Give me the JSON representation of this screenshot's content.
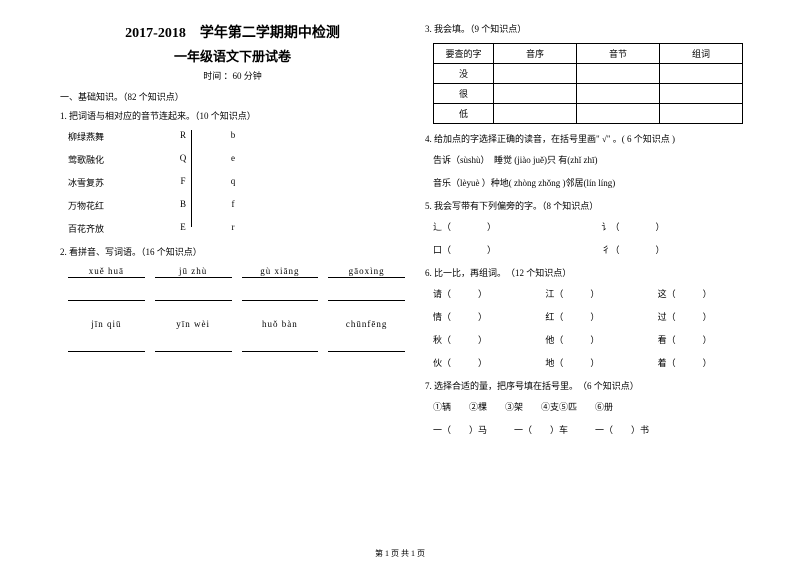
{
  "header": {
    "title1": "2017-2018　学年第二学期期中检测",
    "title2": "一年级语文下册试卷",
    "time": "时间 ：60 分钟"
  },
  "section1": "一、基础知识。（82 个知识点）",
  "q1": {
    "title": "1. 把词语与相对应的音节连起来。（10 个知识点）",
    "rows": [
      {
        "left": "柳绿燕舞",
        "mid": "R",
        "right": "b"
      },
      {
        "left": "莺歌融化",
        "mid": "Q",
        "right": "e"
      },
      {
        "left": "冰雪复苏",
        "mid": "F",
        "right": "q"
      },
      {
        "left": "万物花红",
        "mid": "B",
        "right": "f"
      },
      {
        "left": "百花齐放",
        "mid": "E",
        "right": "r"
      }
    ]
  },
  "q2": {
    "title": "2. 看拼音、写词语。（16 个知识点）",
    "row1": [
      "xuě huā",
      "jū zhù",
      "gù xiāng",
      "gāoxìng"
    ],
    "row2": [
      "jīn qiū",
      "yīn wèi",
      "huǒ bàn",
      "chūnfēng"
    ]
  },
  "q3": {
    "title": "3. 我会填。（9 个知识点）",
    "headers": [
      "要查的字",
      "音序",
      "音节",
      "组词"
    ],
    "rows": [
      "没",
      "很",
      "低"
    ]
  },
  "q4": {
    "title": "4. 给加点的字选择正确的读音，在括号里画\" √\" 。( 6 个知识点 )",
    "line1": "告诉（sùshù）　睡觉 (jiào  juě)只 有(zhǐ zhī)",
    "line2": "音乐（lèyuè ）种地( zhòng  zhǒng )邻居(lín  líng)"
  },
  "q5": {
    "title": "5. 我会写带有下列偏旁的字。（8 个知识点）",
    "row1a": "辶（　　　　）",
    "row1b": "讠（　　　　）",
    "row2a": "口（　　　　）",
    "row2b": "彳（　　　　）"
  },
  "q6": {
    "title": "6. 比一比，再组词。　（12 个知识点）",
    "rows": [
      [
        "请（　　　）",
        "江（　　　）",
        "这（　　　）"
      ],
      [
        "情（　　　）",
        "红（　　　）",
        "过（　　　）"
      ],
      [
        "秋（　　　）",
        "他（　　　）",
        "看（　　　）"
      ],
      [
        "伙（　　　）",
        "地（　　　）",
        "着（　　　）"
      ]
    ]
  },
  "q7": {
    "title": "7. 选择合适的量，把序号填在括号里。　（6 个知识点）",
    "options": "①辆　　②棵　　③架　　④支⑤匹　　⑥册",
    "fill": "一（　　）马　　　一（　　）车　　　一（　　）书"
  },
  "footer": "第 1 页 共 1 页"
}
